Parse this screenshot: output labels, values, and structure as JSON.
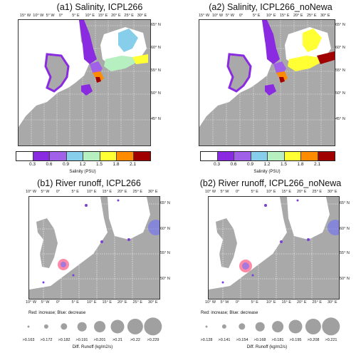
{
  "panels": {
    "a1": {
      "title": "(a1) Salinity, ICPL266"
    },
    "a2": {
      "title": "(a2) Salinity, ICPL266_noNewa"
    },
    "b1": {
      "title": "(b1) River runoff, ICPL266"
    },
    "b2": {
      "title": "(b2) River runoff, ICPL266_noNewa"
    }
  },
  "top_lon_labels": [
    "15° W",
    "10° W",
    "5° W",
    "0°",
    "5° E",
    "10° E",
    "15° E",
    "20° E",
    "25° E",
    "30° E"
  ],
  "top_lat_labels": [
    "65° N",
    "60° N",
    "55° N",
    "50° N",
    "45° N"
  ],
  "bottom_lon_labels": [
    "10° W",
    "5° W",
    "0°",
    "5° E",
    "10° E",
    "15° E",
    "20° E",
    "25° E",
    "30° E"
  ],
  "bottom_lat_labels": [
    "65° N",
    "60° N",
    "55° N",
    "50° N"
  ],
  "salinity_colorbar": {
    "ticks": [
      "0.3",
      "0.6",
      "0.9",
      "1.2",
      "1.5",
      "1.8",
      "2.1"
    ],
    "label": "Salinity (PSU)",
    "colors": [
      "#ffffff",
      "#8a2be2",
      "#a060e8",
      "#87ceeb",
      "#b6f0c0",
      "#ffff33",
      "#ff8c00",
      "#a00000"
    ]
  },
  "runoff_legend_note": "Red: increase; Blue: decrease",
  "runoff_legend_label": "Diff. Runoff (kg/m2/s)",
  "runoff_b1_values": [
    ">0.163",
    ">0.172",
    ">0.182",
    ">0.191",
    ">0.201",
    ">0.21",
    ">0.22",
    ">0.229"
  ],
  "runoff_b2_values": [
    ">0.128",
    ">0.141",
    ">0.154",
    ">0.168",
    ">0.181",
    ">0.195",
    ">0.208",
    ">0.221"
  ]
}
